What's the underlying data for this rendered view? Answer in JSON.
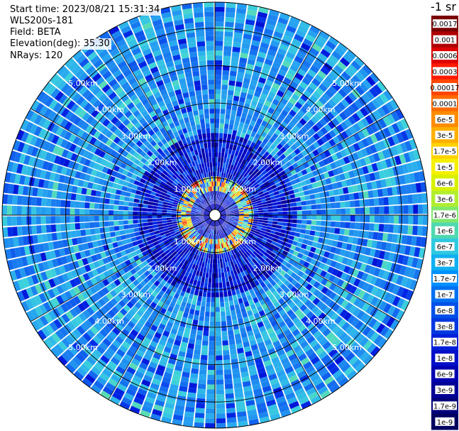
{
  "header": {
    "start_time": "Start time: 2023/08/21 15:31:34",
    "instrument": "WLS200s-181",
    "field": "Field: BETA",
    "elevation": "Elevation(deg): 35.30",
    "nrays": "NRays: 120"
  },
  "colorbar": {
    "unit": "-1 sr",
    "labels": [
      "0.0017",
      "0.001",
      "0.0006",
      "0.0003",
      "0.00017",
      "0.0001",
      "6e-5",
      "3e-5",
      "1.7e-5",
      "1e-5",
      "6e-6",
      "3e-6",
      "1.7e-6",
      "1e-6",
      "6e-7",
      "3e-7",
      "1.7e-7",
      "1e-7",
      "6e-8",
      "3e-8",
      "1.7e-8",
      "1e-8",
      "6e-9",
      "3e-9",
      "1.7e-9",
      "1e-9"
    ],
    "colors": [
      "#7a0000",
      "#b00000",
      "#dd0000",
      "#ff1a00",
      "#ff4500",
      "#ff6a00",
      "#ff8c00",
      "#ffb000",
      "#ffd200",
      "#f5f000",
      "#d8f000",
      "#b0ee30",
      "#80e870",
      "#50d8b0",
      "#30c8e0",
      "#10b0f0",
      "#0090ff",
      "#0070f0",
      "#0050e8",
      "#0038e0",
      "#0020d8",
      "#0010c8",
      "#0000b0",
      "#000095",
      "#00007a",
      "#000060"
    ]
  },
  "chart_data": {
    "type": "heatmap",
    "projection": "polar PPI scan",
    "field": "BETA",
    "units": "-1 sr",
    "n_rays": 120,
    "elevation_deg": 35.3,
    "range_rings_km": [
      1.0,
      2.0,
      3.0,
      4.0,
      5.0
    ],
    "ring_labels": [
      "1.00km",
      "2.00km",
      "3.00km",
      "4.00km",
      "5.00km"
    ],
    "color_scale": "log",
    "color_range": [
      1e-09,
      0.0017
    ],
    "dominant_value_far_range": 3e-08,
    "near_range_peak_ring_km": [
      0.6,
      1.1
    ],
    "near_range_peak_value": 3e-05
  }
}
